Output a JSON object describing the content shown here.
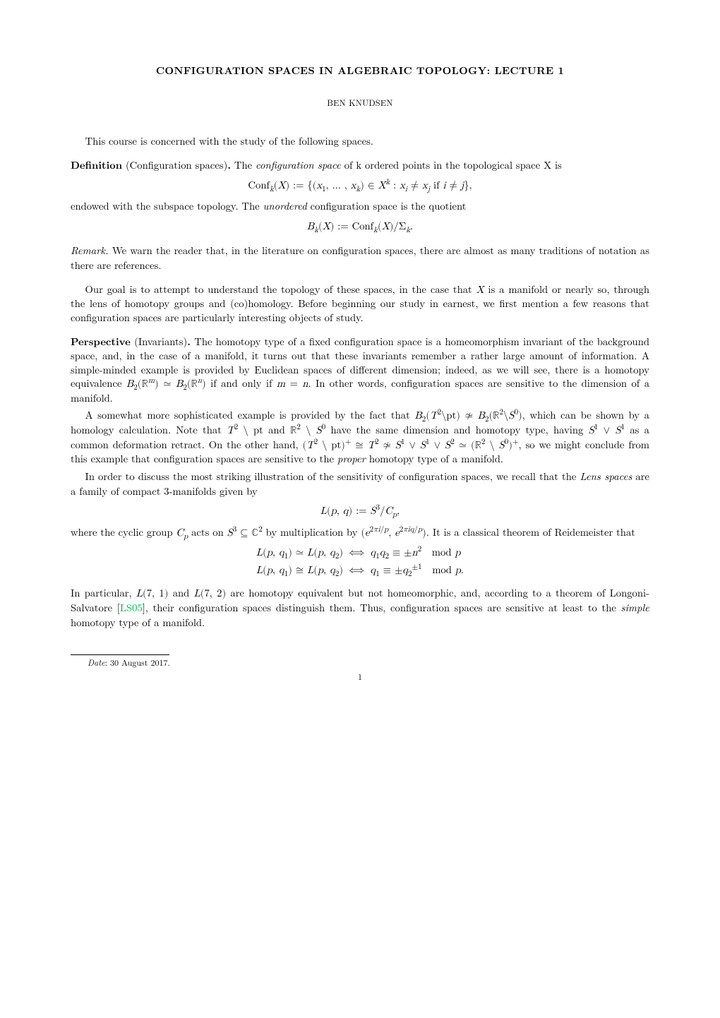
{
  "title": "CONFIGURATION SPACES IN ALGEBRAIC TOPOLOGY: LECTURE 1",
  "author": "BEN KNUDSEN",
  "intro_sentence": "This course is concerned with the study of the following spaces.",
  "definition": {
    "label": "Definition",
    "paren": "(Configuration spaces)",
    "body_before": "The ",
    "keyword": "configuration space",
    "body_after": " of k ordered points in the topological space X is",
    "formula": "Conf_k(X) := {(x₁, …, x_k) ∈ X^k : x_i ≠ x_j if i ≠ j},",
    "after_formula_before": "endowed with the subspace topology. The ",
    "keyword2": "unordered",
    "after_formula_after": " configuration space is the quotient",
    "formula2": "B_k(X) := Conf_k(X)/Σ_k."
  },
  "remark": {
    "label": "Remark.",
    "body": "We warn the reader that, in the literature on configuration spaces, there are almost as many traditions of notation as there are references."
  },
  "goal_paragraph": "Our goal is to attempt to understand the topology of these spaces, in the case that X is a manifold or nearly so, through the lens of homotopy groups and (co)homology. Before beginning our study in earnest, we first mention a few reasons that configuration spaces are particularly interesting objects of study.",
  "perspective": {
    "label": "Perspective",
    "paren": "(Invariants)",
    "p1": "The homotopy type of a fixed configuration space is a homeomorphism invariant of the background space, and, in the case of a manifold, it turns out that these invariants remember a rather large amount of information. A simple-minded example is provided by Euclidean spaces of different dimension; indeed, as we will see, there is a homotopy equivalence B₂(ℝ^m) ≃ B₂(ℝ^n) if and only if m = n. In other words, configuration spaces are sensitive to the dimension of a manifold.",
    "p2": "A somewhat more sophisticated example is provided by the fact that B₂(T²\\pt) ≄ B₂(ℝ²\\S⁰), which can be shown by a homology calculation. Note that T² \\ pt and ℝ² \\ S⁰ have the same dimension and homotopy type, having S¹ ∨ S¹ as a common deformation retract. On the other hand, (T² \\ pt)⁺ ≅ T² ≄ S¹ ∨ S¹ ∨ S² ≃ (ℝ² \\ S⁰)⁺, so we might conclude from this example that configuration spaces are sensitive to the ",
    "p2_keyword": "proper",
    "p2_after": " homotopy type of a manifold.",
    "p3_before": "In order to discuss the most striking illustration of the sensitivity of configuration spaces, we recall that the ",
    "p3_keyword": "Lens spaces",
    "p3_after": " are a family of compact 3-manifolds given by",
    "formula_lens": "L(p, q) := S³/C_p,",
    "p4": "where the cyclic group C_p acts on S³ ⊆ ℂ² by multiplication by (e^{2πi/p}, e^{2πiq/p}). It is a classical theorem of Reidemeister that",
    "align_left1": "L(p, q₁) ≃ L(p, q₂)",
    "align_mid": " ⟺ ",
    "align_right1": "q₁q₂ ≡ ±n²   mod p",
    "align_left2": "L(p, q₁) ≅ L(p, q₂)",
    "align_right2": "q₁ ≡ ±q₂^{±1}   mod p.",
    "p5_before": "In particular, L(7, 1) and L(7, 2) are homotopy equivalent but not homeomorphic, and, according to a theorem of Longoni-Salvatore [",
    "cite": "LS05",
    "p5_after": "], their configuration spaces distinguish them. Thus, configuration spaces are sensitive at least to the ",
    "p5_keyword": "simple",
    "p5_end": " homotopy type of a manifold."
  },
  "footnote": {
    "label": "Date",
    "text": ": 30 August 2017."
  },
  "page_number": "1",
  "colors": {
    "text": "#000000",
    "background": "#ffffff",
    "cite": "#00b050"
  },
  "typography": {
    "body_size_pt": 11,
    "title_size_pt": 11,
    "author_size_pt": 9,
    "footnote_size_pt": 9,
    "font_family": "Computer Modern / Latin Modern Roman"
  }
}
